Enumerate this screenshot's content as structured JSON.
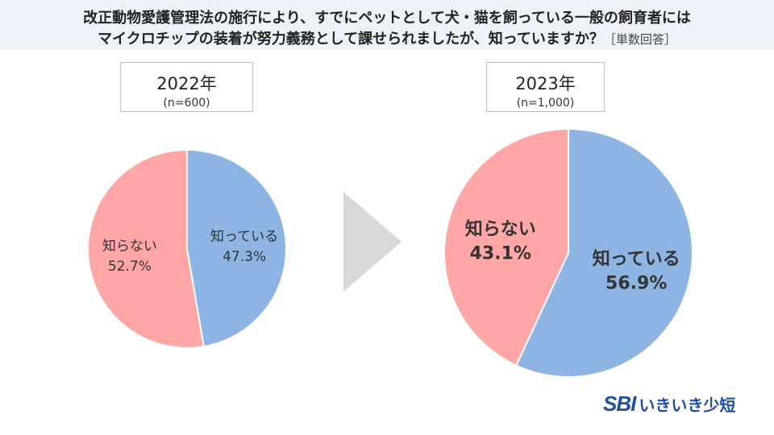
{
  "header": {
    "line1": "改正動物愛護管理法の施行により、すでにペットとして犬・猫を飼っている一般の飼育者には",
    "line2": "マイクロチップの装着が努力義務として課せられましたが、知っていますか？",
    "note": "［単数回答］"
  },
  "logo": {
    "sbi": "SBI",
    "name": "いきいき少短"
  },
  "chart_data": [
    {
      "type": "pie",
      "title": "2022年",
      "subtitle": "(n=600)",
      "slices": [
        {
          "label": "知っている",
          "value": 47.3,
          "display": "47.3%",
          "color": "#8eb4e3"
        },
        {
          "label": "知らない",
          "value": 52.7,
          "display": "52.7%",
          "color": "#ffa6a6"
        }
      ]
    },
    {
      "type": "pie",
      "title": "2023年",
      "subtitle": "(n=1,000)",
      "slices": [
        {
          "label": "知っている",
          "value": 56.9,
          "display": "56.9%",
          "color": "#8eb4e3"
        },
        {
          "label": "知らない",
          "value": 43.1,
          "display": "43.1%",
          "color": "#ffa6a6"
        }
      ]
    }
  ],
  "colors": {
    "header_bg": "#edf1f8",
    "arrow": "#d9d9d9"
  }
}
